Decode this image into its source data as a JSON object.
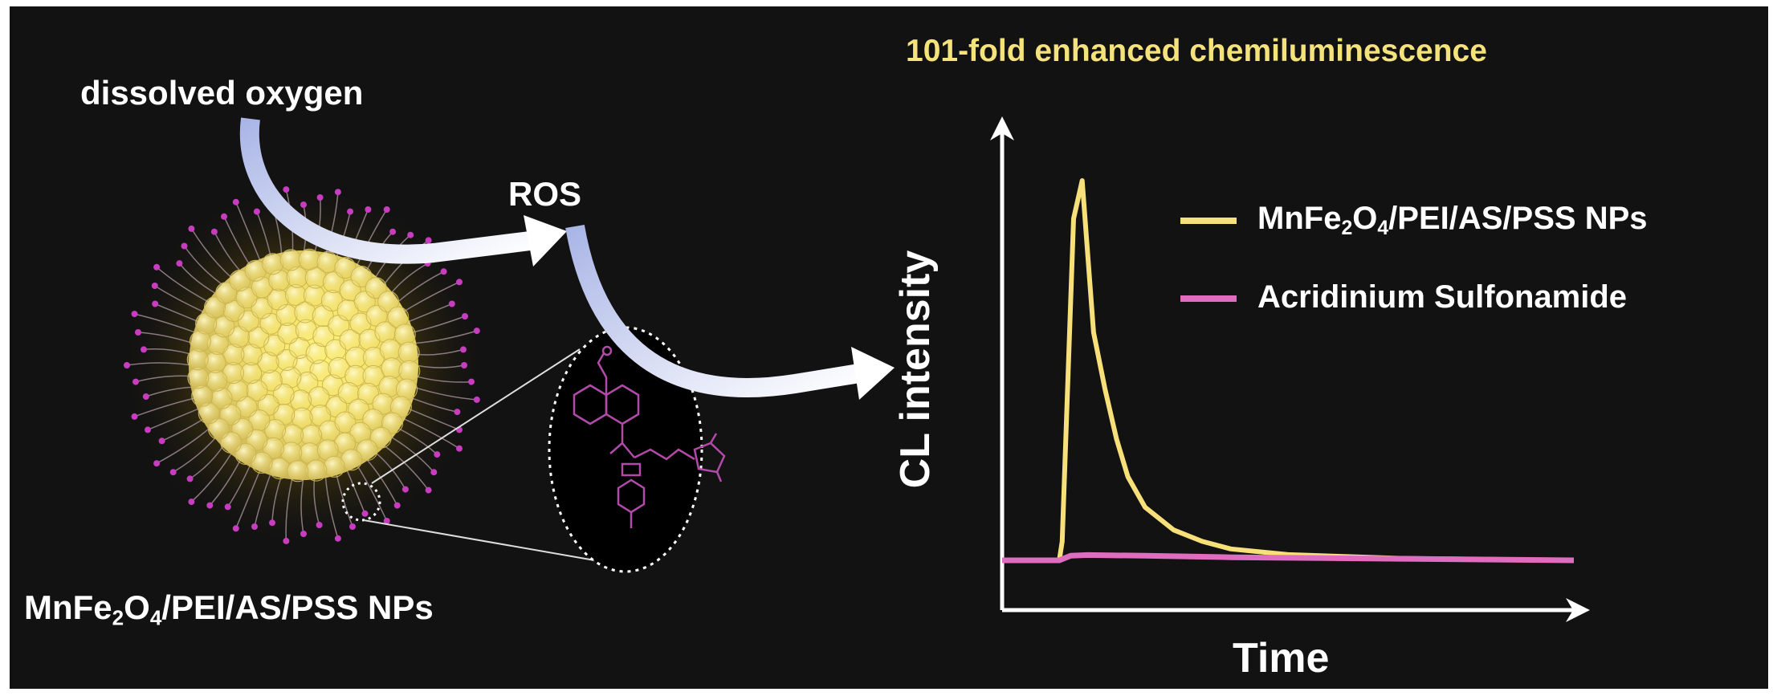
{
  "title": "101-fold enhanced chemiluminescence",
  "labels": {
    "oxygen": "dissolved oxygen",
    "ros": "ROS",
    "np_main": "MnFe",
    "np_sub1": "2",
    "np_mid": "O",
    "np_sub2": "4",
    "np_tail": "/PEI/AS/PSS NPs"
  },
  "colors": {
    "background": "#121212",
    "np_series": "#f7e07a",
    "as_series": "#e06cc0",
    "arrow": "#dfe6ff",
    "molecule": "#b14aa8"
  },
  "chart_data": {
    "type": "line",
    "xlabel": "Time",
    "ylabel": "CL intensity",
    "series": [
      {
        "name_main": "MnFe",
        "name_sub1": "2",
        "name_mid": "O",
        "name_sub2": "4",
        "name_tail": "/PEI/AS/PSS NPs",
        "color": "#f7e07a",
        "x": [
          0,
          0.1,
          0.105,
          0.125,
          0.14,
          0.15,
          0.16,
          0.18,
          0.2,
          0.22,
          0.25,
          0.3,
          0.35,
          0.4,
          0.5,
          0.7,
          1.0
        ],
        "y": [
          0,
          0,
          0.05,
          0.9,
          1.0,
          0.8,
          0.6,
          0.45,
          0.32,
          0.22,
          0.14,
          0.08,
          0.05,
          0.03,
          0.015,
          0.005,
          0
        ]
      },
      {
        "name": "Acridinium Sulfonamide",
        "color": "#e06cc0",
        "x": [
          0,
          0.1,
          0.12,
          0.15,
          0.25,
          0.4,
          0.7,
          1.0
        ],
        "y": [
          0,
          0,
          0.012,
          0.014,
          0.012,
          0.008,
          0.004,
          0
        ]
      }
    ]
  }
}
